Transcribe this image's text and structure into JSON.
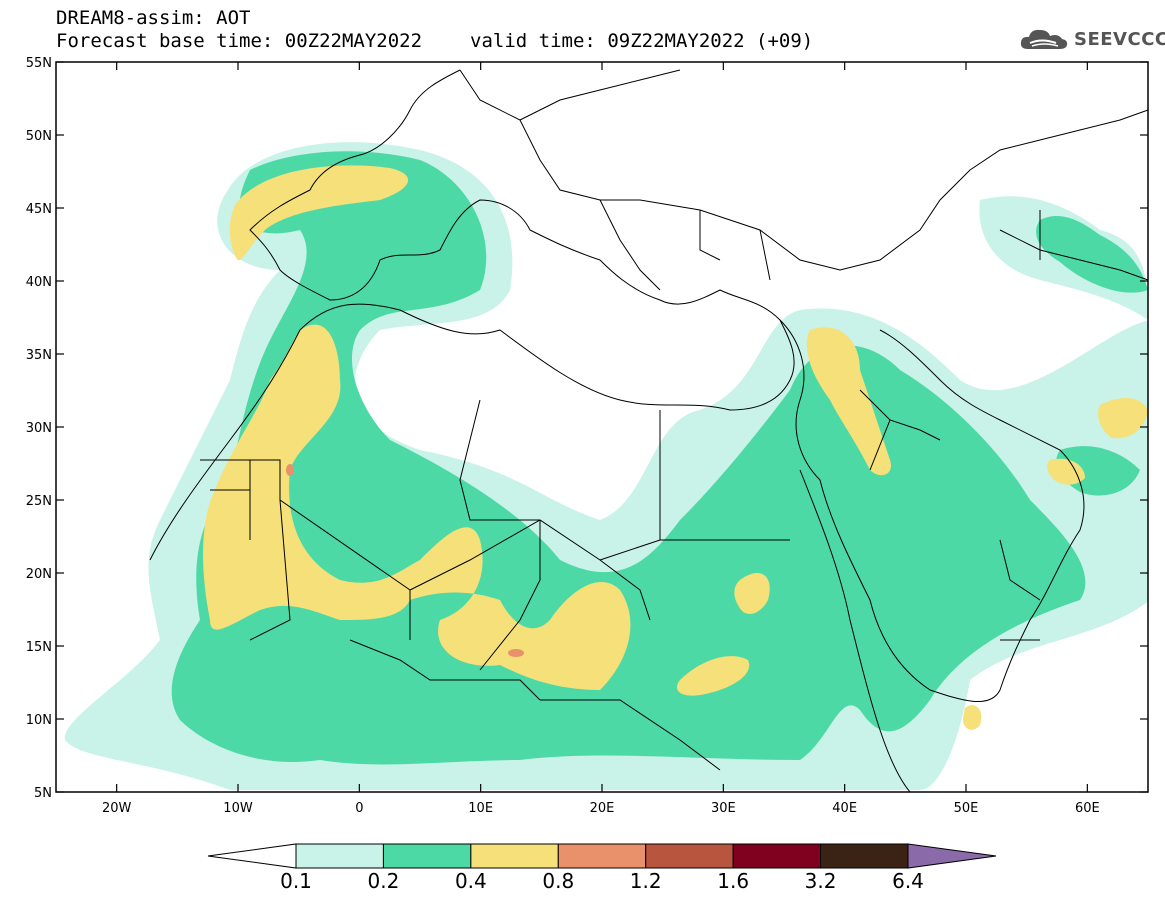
{
  "header": {
    "title_line1": "DREAM8-assim: AOT",
    "base_time": "Forecast base time: 00Z22MAY2022",
    "valid_time": "valid time: 09Z22MAY2022 (+09)",
    "logo_text": "SEEVCCC",
    "logo_icon": "cloud-icon"
  },
  "map": {
    "extent": {
      "lon": [
        -25,
        65
      ],
      "lat": [
        5,
        55
      ]
    },
    "lat_ticks": [
      {
        "value": 55,
        "label": "55N"
      },
      {
        "value": 50,
        "label": "50N"
      },
      {
        "value": 45,
        "label": "45N"
      },
      {
        "value": 40,
        "label": "40N"
      },
      {
        "value": 35,
        "label": "35N"
      },
      {
        "value": 30,
        "label": "30N"
      },
      {
        "value": 25,
        "label": "25N"
      },
      {
        "value": 20,
        "label": "20N"
      },
      {
        "value": 15,
        "label": "15N"
      },
      {
        "value": 10,
        "label": "10N"
      },
      {
        "value": 5,
        "label": "5N"
      }
    ],
    "lon_ticks": [
      {
        "value": -20,
        "label": "20W"
      },
      {
        "value": -10,
        "label": "10W"
      },
      {
        "value": 0,
        "label": "0"
      },
      {
        "value": 10,
        "label": "10E"
      },
      {
        "value": 20,
        "label": "20E"
      },
      {
        "value": 30,
        "label": "30E"
      },
      {
        "value": 40,
        "label": "40E"
      },
      {
        "value": 50,
        "label": "50E"
      },
      {
        "value": 60,
        "label": "60E"
      }
    ]
  },
  "colorbar": {
    "colors": [
      "#ffffff",
      "#c9f2e9",
      "#4dd9a6",
      "#f5e07a",
      "#e8916a",
      "#b8553f",
      "#800020",
      "#3a2215",
      "#8a6aa8"
    ],
    "labels": [
      "0.1",
      "0.2",
      "0.4",
      "0.8",
      "1.2",
      "1.6",
      "3.2",
      "6.4"
    ]
  }
}
